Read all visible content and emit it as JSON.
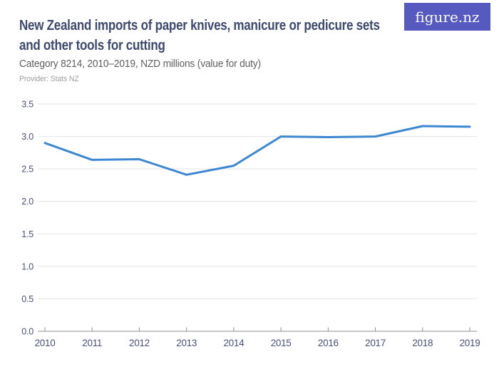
{
  "logo": {
    "text": "figure.nz",
    "background_color": "#5659c0",
    "text_color": "#ffffff"
  },
  "header": {
    "title": "New Zealand imports of paper knives, manicure or pedicure sets\nand other tools for cutting",
    "subtitle": "Category 8214, 2010–2019, NZD millions (value for duty)",
    "provider": "Provider: Stats NZ"
  },
  "chart_data": {
    "type": "line",
    "title": "New Zealand imports of paper knives, manicure or pedicure sets and other tools for cutting",
    "subtitle": "Category 8214, 2010–2019, NZD millions (value for duty)",
    "categories": [
      "2010",
      "2011",
      "2012",
      "2013",
      "2014",
      "2015",
      "2016",
      "2017",
      "2018",
      "2019"
    ],
    "values": [
      2.9,
      2.64,
      2.65,
      2.41,
      2.55,
      3.0,
      2.99,
      3.0,
      3.16,
      3.15
    ],
    "xlabel": "",
    "ylabel": "",
    "ylim": [
      0,
      3.5
    ],
    "yticks": [
      "0.0",
      "0.5",
      "1.0",
      "1.5",
      "2.0",
      "2.5",
      "3.0",
      "3.5"
    ],
    "grid": true,
    "legend": "none",
    "colors": {
      "line": "#3d86d2",
      "grid": "#e3e3e3",
      "axis": "#8f8f8f",
      "tick_label": "#47527c"
    }
  }
}
